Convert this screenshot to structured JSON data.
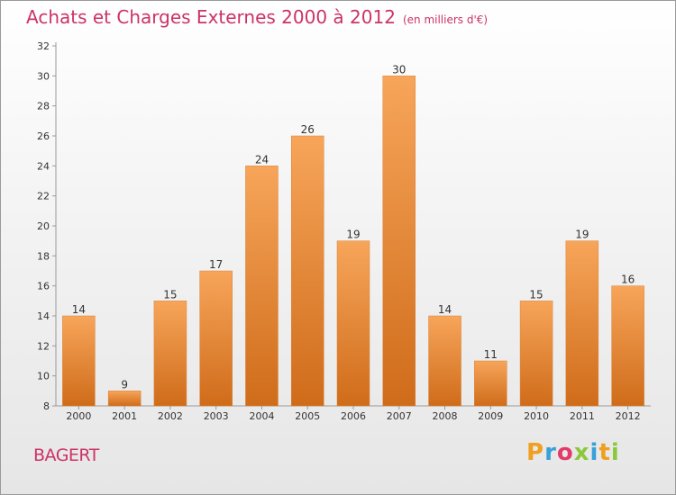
{
  "header": {
    "title": "Achats et Charges Externes 2000 à 2012",
    "unit": "(en milliers d'€)"
  },
  "footer": {
    "commune": "BAGERT",
    "logo_text": "Proxiti"
  },
  "colors": {
    "accent": "#cc3366",
    "bar_top": "#f7a55a",
    "bar_bottom": "#cf6c1a",
    "logo_letters": [
      "#f0a020",
      "#3aa0d8",
      "#e23a6a",
      "#8cc83c",
      "#3aa0d8",
      "#f0a020",
      "#8cc83c"
    ]
  },
  "chart_data": {
    "type": "bar",
    "title": "Achats et Charges Externes 2000 à 2012",
    "subtitle": "(en milliers d'€)",
    "categories": [
      "2000",
      "2001",
      "2002",
      "2003",
      "2004",
      "2005",
      "2006",
      "2007",
      "2008",
      "2009",
      "2010",
      "2011",
      "2012"
    ],
    "values": [
      14,
      9,
      15,
      17,
      24,
      26,
      19,
      30,
      14,
      11,
      15,
      19,
      16
    ],
    "ylim": [
      8,
      32
    ],
    "yticks": [
      8,
      10,
      12,
      14,
      16,
      18,
      20,
      22,
      24,
      26,
      28,
      30,
      32
    ],
    "grid": false,
    "data_labels": true
  }
}
